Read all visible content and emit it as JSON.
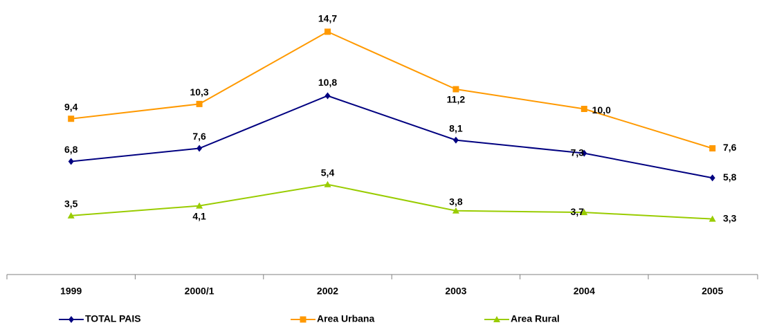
{
  "chart_data": {
    "type": "line",
    "categories": [
      "1999",
      "2000/1",
      "2002",
      "2003",
      "2004",
      "2005"
    ],
    "ylim": [
      0,
      16
    ],
    "series": [
      {
        "name": "TOTAL PAIS",
        "color": "#000080",
        "marker": "diamond",
        "values": [
          6.8,
          7.6,
          10.8,
          8.1,
          7.3,
          5.8
        ],
        "value_labels": [
          "6,8",
          "7,6",
          "10,8",
          "8,1",
          "7,3",
          "5,8"
        ]
      },
      {
        "name": "Area Urbana",
        "color": "#FF9900",
        "marker": "square",
        "values": [
          9.4,
          10.3,
          14.7,
          11.2,
          10.0,
          7.6
        ],
        "value_labels": [
          "9,4",
          "10,3",
          "14,7",
          "11,2",
          "10,0",
          "7,6"
        ]
      },
      {
        "name": "Area Rural",
        "color": "#99CC00",
        "marker": "triangle",
        "values": [
          3.5,
          4.1,
          5.4,
          3.8,
          3.7,
          3.3
        ],
        "value_labels": [
          "3,5",
          "4,1",
          "5,4",
          "3,8",
          "3,7",
          "3,3"
        ]
      }
    ]
  }
}
